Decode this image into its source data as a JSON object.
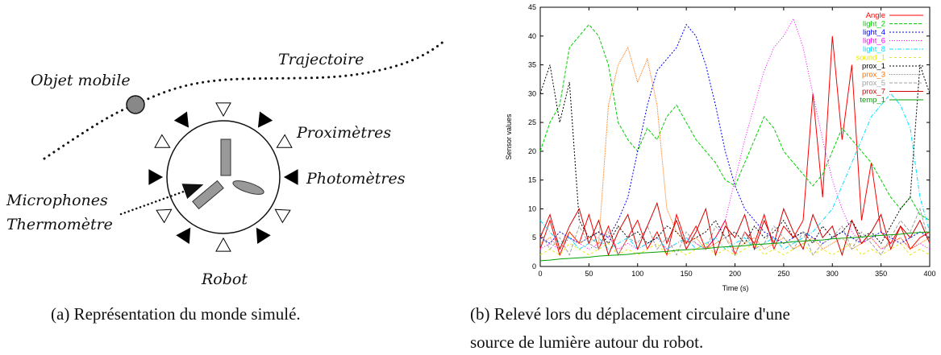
{
  "figure_a": {
    "labels": {
      "object": "Objet mobile",
      "trajectory": "Trajectoire",
      "proximeters": "Proximètres",
      "photometers": "Photomètres",
      "microphones": "Microphones",
      "thermometer": "Thermomètre",
      "robot": "Robot"
    },
    "caption": "(a) Représentation du monde simulé."
  },
  "chart_data": {
    "type": "line",
    "xlabel": "Time (s)",
    "ylabel": "Sensor values",
    "caption": [
      "(b) Relevé lors du déplacement circulaire d'une",
      "source de lumière autour du robot."
    ],
    "xlim": [
      0,
      400
    ],
    "ylim": [
      0,
      45
    ],
    "xticks": [
      0,
      50,
      100,
      150,
      200,
      250,
      300,
      350,
      400
    ],
    "yticks": [
      0,
      5,
      10,
      15,
      20,
      25,
      30,
      35,
      40,
      45
    ],
    "legend": "upper-right",
    "x": [
      0,
      10,
      20,
      30,
      40,
      50,
      60,
      70,
      80,
      90,
      100,
      110,
      120,
      130,
      140,
      150,
      160,
      170,
      180,
      190,
      200,
      210,
      220,
      230,
      240,
      250,
      260,
      270,
      280,
      290,
      300,
      310,
      320,
      330,
      340,
      350,
      360,
      370,
      380,
      390,
      400
    ],
    "series": [
      {
        "name": "Angle",
        "color": "#ff0000",
        "dash": "none",
        "values": [
          3,
          8,
          2,
          6,
          4,
          9,
          3,
          7,
          2,
          5,
          8,
          3,
          6,
          2,
          9,
          4,
          7,
          3,
          5,
          8,
          2,
          6,
          4,
          9,
          3,
          7,
          5,
          8,
          30,
          12,
          40,
          22,
          35,
          8,
          18,
          6,
          4,
          7,
          3,
          5,
          6
        ]
      },
      {
        "name": "light_2",
        "color": "#00d000",
        "dash": "4,2",
        "values": [
          20,
          25,
          28,
          38,
          40,
          42,
          40,
          35,
          25,
          22,
          20,
          24,
          22,
          26,
          28,
          25,
          22,
          20,
          18,
          15,
          14,
          18,
          22,
          26,
          24,
          20,
          18,
          16,
          14,
          16,
          20,
          24,
          22,
          20,
          18,
          15,
          12,
          10,
          12,
          9,
          8
        ]
      },
      {
        "name": "light_4",
        "color": "#0000ff",
        "dash": "2,2",
        "values": [
          5,
          4,
          6,
          5,
          4,
          5,
          6,
          5,
          8,
          12,
          20,
          28,
          34,
          36,
          38,
          42,
          40,
          35,
          28,
          20,
          14,
          10,
          8,
          6,
          5,
          4,
          5,
          6,
          5,
          4,
          5,
          6,
          5,
          4,
          5,
          6,
          5,
          4,
          5,
          6,
          5
        ]
      },
      {
        "name": "light_6",
        "color": "#ff00ff",
        "dash": "1,2",
        "values": [
          3,
          4,
          3,
          5,
          4,
          3,
          4,
          5,
          3,
          4,
          3,
          4,
          5,
          3,
          4,
          5,
          4,
          3,
          5,
          8,
          15,
          22,
          28,
          34,
          38,
          40,
          43,
          38,
          30,
          22,
          15,
          10,
          6,
          4,
          5,
          3,
          4,
          5,
          3,
          4,
          3
        ]
      },
      {
        "name": "light_8",
        "color": "#00e0ff",
        "dash": "5,2,1,2",
        "values": [
          8,
          6,
          4,
          5,
          3,
          4,
          5,
          3,
          4,
          5,
          3,
          4,
          5,
          3,
          4,
          5,
          3,
          4,
          5,
          3,
          4,
          5,
          3,
          4,
          5,
          3,
          4,
          5,
          6,
          8,
          10,
          14,
          18,
          22,
          26,
          28,
          30,
          28,
          24,
          12,
          6
        ]
      },
      {
        "name": "sound_1",
        "color": "#e8e800",
        "dash": "3,3",
        "values": [
          2,
          3,
          2,
          4,
          3,
          2,
          3,
          4,
          2,
          3,
          2,
          3,
          4,
          2,
          3,
          2,
          3,
          4,
          2,
          3,
          2,
          3,
          4,
          2,
          3,
          2,
          3,
          4,
          2,
          3,
          2,
          3,
          4,
          2,
          3,
          2,
          3,
          4,
          2,
          3,
          2
        ]
      },
      {
        "name": "prox_1",
        "color": "#000000",
        "dash": "2,2",
        "values": [
          30,
          35,
          25,
          32,
          8,
          5,
          6,
          4,
          7,
          5,
          6,
          4,
          5,
          7,
          6,
          4,
          5,
          6,
          8,
          5,
          6,
          4,
          7,
          5,
          6,
          8,
          5,
          6,
          4,
          7,
          5,
          6,
          8,
          5,
          6,
          4,
          7,
          10,
          12,
          35,
          30
        ]
      },
      {
        "name": "prox_3",
        "color": "#ff7000",
        "dash": "1,1",
        "values": [
          4,
          5,
          3,
          6,
          4,
          5,
          4,
          28,
          35,
          38,
          32,
          36,
          28,
          10,
          6,
          4,
          5,
          3,
          4,
          5,
          3,
          4,
          5,
          3,
          4,
          5,
          3,
          4,
          5,
          3,
          4,
          5,
          3,
          4,
          5,
          3,
          4,
          5,
          3,
          4,
          5
        ]
      },
      {
        "name": "prox_5",
        "color": "#a0a0a0",
        "dash": "4,2",
        "values": [
          6,
          3,
          5,
          2,
          7,
          4,
          3,
          6,
          2,
          5,
          4,
          7,
          3,
          5,
          2,
          6,
          4,
          3,
          7,
          5,
          2,
          6,
          3,
          4,
          7,
          5,
          3,
          6,
          2,
          4,
          5,
          7,
          3,
          6,
          4,
          2,
          5,
          8,
          6,
          10,
          4
        ]
      },
      {
        "name": "prox_7",
        "color": "#d00000",
        "dash": "none",
        "values": [
          5,
          9,
          3,
          7,
          10,
          4,
          8,
          2,
          6,
          9,
          3,
          7,
          11,
          4,
          8,
          3,
          6,
          10,
          2,
          7,
          5,
          9,
          3,
          8,
          4,
          10,
          6,
          3,
          9,
          5,
          7,
          2,
          8,
          4,
          6,
          9,
          3,
          7,
          5,
          8,
          4
        ]
      },
      {
        "name": "temp_1",
        "color": "#00a000",
        "dash": "none",
        "values": [
          1,
          1.1,
          1.3,
          1.4,
          1.5,
          1.6,
          1.8,
          1.9,
          2,
          2.1,
          2.3,
          2.4,
          2.5,
          2.6,
          2.8,
          2.9,
          3,
          3.1,
          3.3,
          3.4,
          3.5,
          3.6,
          3.8,
          3.9,
          4,
          4.1,
          4.3,
          4.4,
          4.5,
          4.6,
          4.8,
          4.9,
          5,
          5.1,
          5.3,
          5.4,
          5.5,
          5.6,
          5.8,
          5.9,
          6
        ]
      }
    ]
  }
}
